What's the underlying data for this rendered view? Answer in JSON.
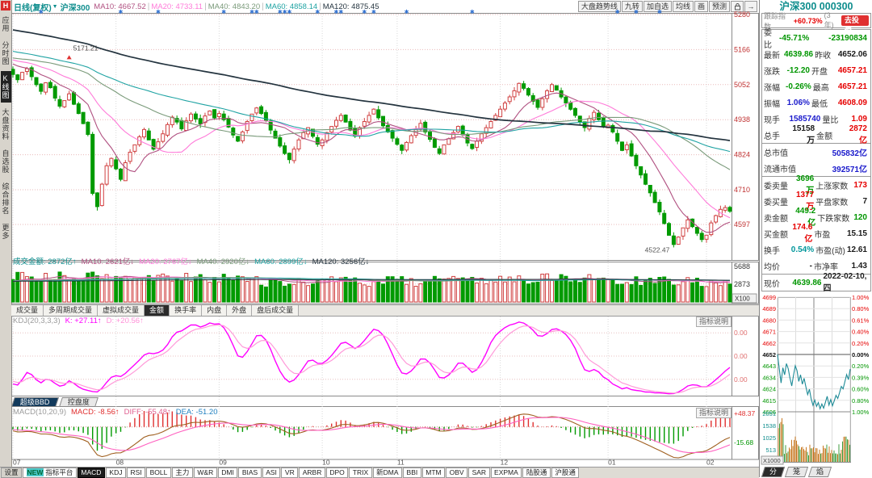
{
  "app": {
    "toolbar": {
      "period": "日线(复权)",
      "symbol": "沪深300",
      "ma_items": [
        {
          "t": "MA10: 4667.52",
          "c": "#b05080"
        },
        {
          "t": "MA20: 4733.11",
          "c": "#ff7ad9"
        },
        {
          "t": "MA40: 4843.20",
          "c": "#7a9a7a"
        },
        {
          "t": "MA60: 4858.14",
          "c": "#1fa3a3"
        },
        {
          "t": "MA120: 4875.45",
          "c": "#24343f"
        }
      ],
      "buttons": [
        "大盘趋势线",
        "九转",
        "加自选",
        "均线",
        "画",
        "预测"
      ]
    },
    "sidebar": {
      "logo": "H",
      "items": [
        "应用",
        "分时图",
        "K线图",
        "大盘资料",
        "自选股",
        "综合排名",
        "更多"
      ],
      "active_index": 2
    }
  },
  "labels": {
    "help": "指标说明",
    "vol_unit": "X100",
    "mini_unit": "X1000"
  },
  "vol_header": {
    "items": [
      {
        "t": "成交金额: 2872亿↑",
        "c": "#0e8d8d"
      },
      {
        "t": "MA10: 2621亿↓",
        "c": "#b05080"
      },
      {
        "t": "MA20: 2767亿↓",
        "c": "#ff7ad9"
      },
      {
        "t": "MA40: 2920亿↓",
        "c": "#7a9a7a"
      },
      {
        "t": "MA60: 2899亿↓",
        "c": "#1fa3a3"
      },
      {
        "t": "MA120: 3256亿↓",
        "c": "#24343f"
      }
    ]
  },
  "vol_tabs": {
    "items": [
      "成交量",
      "多周期成交量",
      "虚拟成交量",
      "金额",
      "换手率",
      "内盘",
      "外盘",
      "盘后成交量"
    ],
    "active": "金额"
  },
  "kdj_header": {
    "items": [
      {
        "t": "KDJ(20,3,3,3)",
        "c": "#9a9a9a"
      },
      {
        "t": "K: +27.11↑",
        "c": "#ff00ff"
      },
      {
        "t": "D: +20.56↑",
        "c": "#ff8fd8"
      }
    ]
  },
  "sub_tabs": {
    "items": [
      "超级BBD",
      "控盘度"
    ],
    "active": "超级BBD"
  },
  "macd_header": {
    "items": [
      {
        "t": "MACD(10,20,9)",
        "c": "#9a9a9a"
      },
      {
        "t": "MACD: -8.56↑",
        "c": "#e03030"
      },
      {
        "t": "DIFF: -55.48↑",
        "c": "#e06090"
      },
      {
        "t": "DEA: -51.20",
        "c": "#2080c0"
      }
    ]
  },
  "bottom_bar": {
    "new_badge": "NEW",
    "items": [
      "设置",
      "指标平台",
      "MACD",
      "KDJ",
      "RSI",
      "BOLL",
      "主力",
      "W&R",
      "DMI",
      "BIAS",
      "ASI",
      "VR",
      "ARBR",
      "DPO",
      "TRIX",
      "新DMA",
      "BBI",
      "MTM",
      "OBV",
      "SAR",
      "EXPMA",
      "陆股通",
      "沪股通"
    ],
    "active": "MACD"
  },
  "right_panel": {
    "title": "沪深300 000300",
    "track": {
      "label": "跟踪指数",
      "value": "+60.73%",
      "suffix": "(3年)",
      "button": "去投资"
    },
    "rows_a": [
      [
        "委比",
        "-45.71%",
        "g",
        "",
        "-23190834",
        "g"
      ],
      [
        "最新",
        "4639.86",
        "g",
        "昨收",
        "4652.06",
        "k"
      ],
      [
        "涨跌",
        "-12.20",
        "g",
        "开盘",
        "4657.21",
        "r"
      ],
      [
        "涨幅",
        "-0.26%",
        "g",
        "最高",
        "4657.21",
        "r"
      ],
      [
        "振幅",
        "1.06%",
        "b",
        "最低",
        "4608.09",
        "r"
      ],
      [
        "现手",
        "1585740",
        "b",
        "量比",
        "1.09",
        "r"
      ],
      [
        "总手",
        "15158万",
        "k",
        "金额",
        "2872亿",
        "r"
      ]
    ],
    "rows_b": [
      [
        "总市值",
        "505832亿",
        "b"
      ],
      [
        "流通市值",
        "392571亿",
        "b"
      ]
    ],
    "rows_c": [
      [
        "委卖量",
        "3696万",
        "g",
        "上涨家数",
        "173",
        "r"
      ],
      [
        "委买量",
        "1377万",
        "r",
        "平盘家数",
        "7",
        "k"
      ],
      [
        "卖金额",
        "449.2亿",
        "g",
        "下跌家数",
        "120",
        "g"
      ],
      [
        "买金额",
        "174.6亿",
        "r",
        "市盈",
        "15.15",
        "k"
      ],
      [
        "换手",
        "0.54%",
        "t",
        "市盈(动)",
        "12.61",
        "k"
      ],
      [
        "均价",
        "-",
        "k",
        "市净率",
        "1.43",
        "k"
      ]
    ],
    "price_row": {
      "label": "现价",
      "value": "4639.86",
      "color": "g",
      "date": "2022-02-10,四"
    },
    "mini_tabs": {
      "items": [
        "分",
        "笼",
        "焰"
      ],
      "active": "分"
    }
  },
  "chart_data": [
    {
      "id": "kline",
      "type": "candlestick",
      "title": "沪深300 日线(复权)",
      "y_ticks": [
        5280,
        5166,
        5052,
        4938,
        4824,
        4710,
        4597
      ],
      "y_range": [
        4482,
        5280
      ],
      "months": [
        {
          "label": "07",
          "i": 0
        },
        {
          "label": "08",
          "i": 22
        },
        {
          "label": "09",
          "i": 44
        },
        {
          "label": "10",
          "i": 66
        },
        {
          "label": "11",
          "i": 82
        },
        {
          "label": "12",
          "i": 104
        },
        {
          "label": "01",
          "i": 127
        },
        {
          "label": "02",
          "i": 148
        }
      ],
      "closes": [
        5085,
        5068,
        5092,
        5104,
        5078,
        5052,
        5030,
        5058,
        5042,
        5008,
        4982,
        5000,
        5022,
        4988,
        4958,
        4925,
        4890,
        4698,
        4655,
        4728,
        4788,
        4812,
        4778,
        4744,
        4798,
        4832,
        4856,
        4882,
        4906,
        4872,
        4842,
        4866,
        4892,
        4922,
        4946,
        4930,
        4908,
        4934,
        4956,
        4940,
        4924,
        4950,
        4966,
        4944,
        4958,
        4938,
        4914,
        4888,
        4868,
        4898,
        4932,
        4956,
        4976,
        4958,
        4934,
        4904,
        4878,
        4852,
        4828,
        4808,
        4842,
        4872,
        4896,
        4912,
        4884,
        4858,
        4872,
        4896,
        4916,
        4936,
        4952,
        4930,
        4904,
        4884,
        4912,
        4932,
        4952,
        4972,
        4944,
        4918,
        4898,
        4878,
        4858,
        4838,
        4864,
        4886,
        4906,
        4926,
        4898,
        4874,
        4848,
        4828,
        4856,
        4876,
        4896,
        4916,
        4888,
        4862,
        4844,
        4868,
        4892,
        4912,
        4932,
        4952,
        4972,
        4992,
        5012,
        5032,
        5056,
        5040,
        5018,
        4998,
        4978,
        5006,
        5032,
        5052,
        5034,
        5012,
        4992,
        4972,
        4952,
        4932,
        4912,
        4942,
        4962,
        4938,
        4916,
        4920,
        4898,
        4868,
        4838,
        4856,
        4820,
        4788,
        4758,
        4728,
        4700,
        4668,
        4638,
        4600,
        4562,
        4532,
        4556,
        4586,
        4612,
        4590,
        4568,
        4548,
        4562,
        4602,
        4626,
        4646,
        4652,
        4640
      ],
      "ma_periods": [
        10,
        20,
        40,
        60,
        120
      ],
      "annotations": [
        {
          "text": "5171.21",
          "day": 12,
          "price": 5171.21,
          "marker": "peak"
        },
        {
          "text": "4522.47",
          "day": 141,
          "price": 4522.47,
          "marker": "low"
        }
      ],
      "signal_days": [
        6,
        23,
        31,
        45,
        51,
        52,
        57,
        58,
        59,
        65,
        69,
        70,
        75,
        77,
        84,
        98,
        129,
        133,
        138
      ]
    },
    {
      "id": "volume",
      "type": "bar",
      "y_ticks": [
        5688,
        2873
      ],
      "unit": "X100",
      "current_value": 2872
    },
    {
      "id": "kdj",
      "type": "line",
      "params": [
        20,
        3,
        3,
        3
      ],
      "k": 27.11,
      "d": 20.56,
      "axis_labels": [
        "0.00",
        "0.00",
        "0.00"
      ]
    },
    {
      "id": "macd",
      "type": "line+bar",
      "params": [
        10,
        20,
        9
      ],
      "macd": -8.56,
      "diff": -55.48,
      "dea": -51.2,
      "pos": "+48.37",
      "neg": "-15.68"
    },
    {
      "id": "intraday",
      "type": "line",
      "prev_close": 4652.06,
      "low": 4608.09,
      "last": 4639.86,
      "left_axis": [
        "4699",
        "4689",
        "4680",
        "4671",
        "4662",
        "4652",
        "4643",
        "4634",
        "4624",
        "4615",
        "4606"
      ],
      "right_axis": [
        "1.00%",
        "0.80%",
        "0.61%",
        "0.40%",
        "0.20%",
        "0.00%",
        "0.20%",
        "0.39%",
        "0.60%",
        "0.80%",
        "1.00%"
      ],
      "vol_axis": [
        "2051",
        "1538",
        "1025",
        "513"
      ],
      "prices": [
        4652,
        4640,
        4630,
        4642,
        4636,
        4645,
        4641,
        4633,
        4627,
        4636,
        4643,
        4639,
        4631,
        4636,
        4628,
        4633,
        4626,
        4620,
        4624,
        4617,
        4611,
        4616,
        4610,
        4613,
        4608,
        4612,
        4609,
        4614,
        4618,
        4612,
        4616,
        4611,
        4615,
        4620,
        4617,
        4622,
        4627,
        4624,
        4630,
        4636,
        4632,
        4640
      ]
    }
  ]
}
